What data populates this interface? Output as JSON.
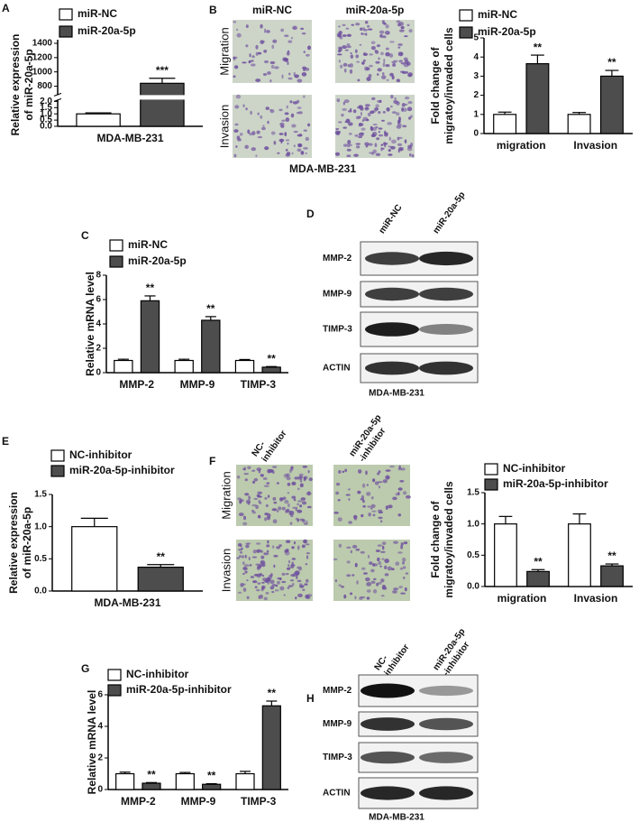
{
  "chart_data": [
    {
      "type": "bar",
      "panel": "A",
      "ylabel": [
        "Relative expression",
        "of miR-20a-5p"
      ],
      "categories": [
        "MDA-MB-231"
      ],
      "series": [
        {
          "name": "miR-NC",
          "color": "#ffffff",
          "values": [
            1.0
          ],
          "errors": [
            0.08
          ],
          "sig": [
            null
          ]
        },
        {
          "name": "miR-20a-5p",
          "color": "#4d4d4d",
          "values": [
            840
          ],
          "errors": [
            70
          ],
          "sig": [
            "***"
          ]
        }
      ],
      "ylim": [
        0,
        1400
      ],
      "ybreak": [
        2,
        700
      ],
      "yticks": [
        {
          "value": 0,
          "label": "0.0"
        },
        {
          "value": 0.5,
          "label": "0.5"
        },
        {
          "value": 1,
          "label": "1.0"
        },
        {
          "value": 1.5,
          "label": "1.5"
        },
        {
          "value": 2,
          "label": "2.0"
        },
        800,
        1000,
        1200,
        1400
      ]
    },
    {
      "type": "bar",
      "ylabel": [
        "Fold change of",
        "migratoy/invaded cells"
      ],
      "categories": [
        "migration",
        "Invasion"
      ],
      "series": [
        {
          "name": "miR-NC",
          "color": "#ffffff",
          "values": [
            1.0,
            1.0
          ],
          "errors": [
            0.12,
            0.1
          ],
          "sig": [
            null,
            null
          ]
        },
        {
          "name": "miR-20a-5p",
          "color": "#4d4d4d",
          "values": [
            3.65,
            3.0
          ],
          "errors": [
            0.45,
            0.3
          ],
          "sig": [
            "**",
            "**"
          ]
        }
      ],
      "ylim": [
        0,
        5
      ],
      "yticks": [
        0,
        1,
        2,
        3,
        4,
        5
      ]
    },
    {
      "type": "bar",
      "panel": "C",
      "ylabel": [
        "Relative mRNA level"
      ],
      "categories": [
        "MMP-2",
        "MMP-9",
        "TIMP-3"
      ],
      "series": [
        {
          "name": "miR-NC",
          "color": "#ffffff",
          "values": [
            1.0,
            1.0,
            1.0
          ],
          "errors": [
            0.1,
            0.1,
            0.08
          ],
          "sig": [
            null,
            null,
            null
          ]
        },
        {
          "name": "miR-20a-5p",
          "color": "#4d4d4d",
          "values": [
            5.9,
            4.3,
            0.45
          ],
          "errors": [
            0.4,
            0.3,
            0.05
          ],
          "sig": [
            "**",
            "**",
            "**"
          ]
        }
      ],
      "ylim": [
        0,
        8
      ],
      "yticks": [
        0,
        2,
        4,
        6,
        8
      ]
    },
    {
      "type": "bar",
      "panel": "E",
      "ylabel": [
        "Relative expression",
        "of miR-20a-5p"
      ],
      "categories": [
        "MDA-MB-231"
      ],
      "series": [
        {
          "name": "NC-inhibitor",
          "color": "#ffffff",
          "values": [
            1.0
          ],
          "errors": [
            0.13
          ],
          "sig": [
            null
          ]
        },
        {
          "name": "miR-20a-5p-inhibitor",
          "color": "#4d4d4d",
          "values": [
            0.37
          ],
          "errors": [
            0.04
          ],
          "sig": [
            "**"
          ]
        }
      ],
      "ylim": [
        0,
        1.5
      ],
      "yticks": [
        {
          "value": 0,
          "label": "0.0"
        },
        {
          "value": 0.5,
          "label": "0.5"
        },
        {
          "value": 1,
          "label": "1.0"
        },
        {
          "value": 1.5,
          "label": "1.5"
        }
      ]
    },
    {
      "type": "bar",
      "ylabel": [
        "Fold change of",
        "migratoy/invaded cells"
      ],
      "categories": [
        "migration",
        "Invasion"
      ],
      "series": [
        {
          "name": "NC-inhibitor",
          "color": "#ffffff",
          "values": [
            1.0,
            1.0
          ],
          "errors": [
            0.12,
            0.16
          ],
          "sig": [
            null,
            null
          ]
        },
        {
          "name": "miR-20a-5p-inhibitor",
          "color": "#4d4d4d",
          "values": [
            0.24,
            0.33
          ],
          "errors": [
            0.03,
            0.03
          ],
          "sig": [
            "**",
            "**"
          ]
        }
      ],
      "ylim": [
        0,
        1.5
      ],
      "yticks": [
        {
          "value": 0,
          "label": "0.0"
        },
        {
          "value": 0.5,
          "label": "0.5"
        },
        {
          "value": 1,
          "label": "1.0"
        },
        {
          "value": 1.5,
          "label": "1.5"
        }
      ]
    },
    {
      "type": "bar",
      "panel": "G",
      "ylabel": [
        "Relative mRNA level"
      ],
      "categories": [
        "MMP-2",
        "MMP-9",
        "TIMP-3"
      ],
      "series": [
        {
          "name": "NC-inhibitor",
          "color": "#ffffff",
          "values": [
            1.0,
            1.0,
            1.0
          ],
          "errors": [
            0.1,
            0.08,
            0.15
          ],
          "sig": [
            null,
            null,
            null
          ]
        },
        {
          "name": "miR-20a-5p-inhibitor",
          "color": "#4d4d4d",
          "values": [
            0.4,
            0.33,
            5.3
          ],
          "errors": [
            0.04,
            0.04,
            0.3
          ],
          "sig": [
            "**",
            "**",
            "**"
          ]
        }
      ],
      "ylim": [
        0,
        6
      ],
      "yticks": [
        0,
        2,
        4,
        6
      ]
    }
  ],
  "images": [
    {
      "panel": "B",
      "kind": "micro",
      "columns": [
        "miR-NC",
        "miR-20a-5p"
      ],
      "rows": [
        "Migration",
        "Invasion"
      ],
      "caption": "MDA-MB-231"
    },
    {
      "panel": "D",
      "kind": "blot",
      "columns": [
        "miR-NC",
        "miR-20a-5p"
      ],
      "rows": [
        "MMP-2",
        "MMP-9",
        "TIMP-3",
        "ACTIN"
      ],
      "caption": "MDA-MB-231"
    },
    {
      "panel": "F",
      "kind": "micro",
      "columns": [
        [
          "NC-",
          "inhibitor"
        ],
        [
          "miR-20a-5p",
          "-inhibitor"
        ]
      ],
      "rows": [
        "Migration",
        "Invasion"
      ]
    },
    {
      "panel": "H",
      "kind": "blot",
      "columns": [
        [
          "NC-",
          "inhibitor"
        ],
        [
          "miR-20a-5p",
          "-inhibitor"
        ]
      ],
      "rows": [
        "MMP-2",
        "MMP-9",
        "TIMP-3",
        "ACTIN"
      ],
      "caption": "MDA-MB-231"
    }
  ]
}
